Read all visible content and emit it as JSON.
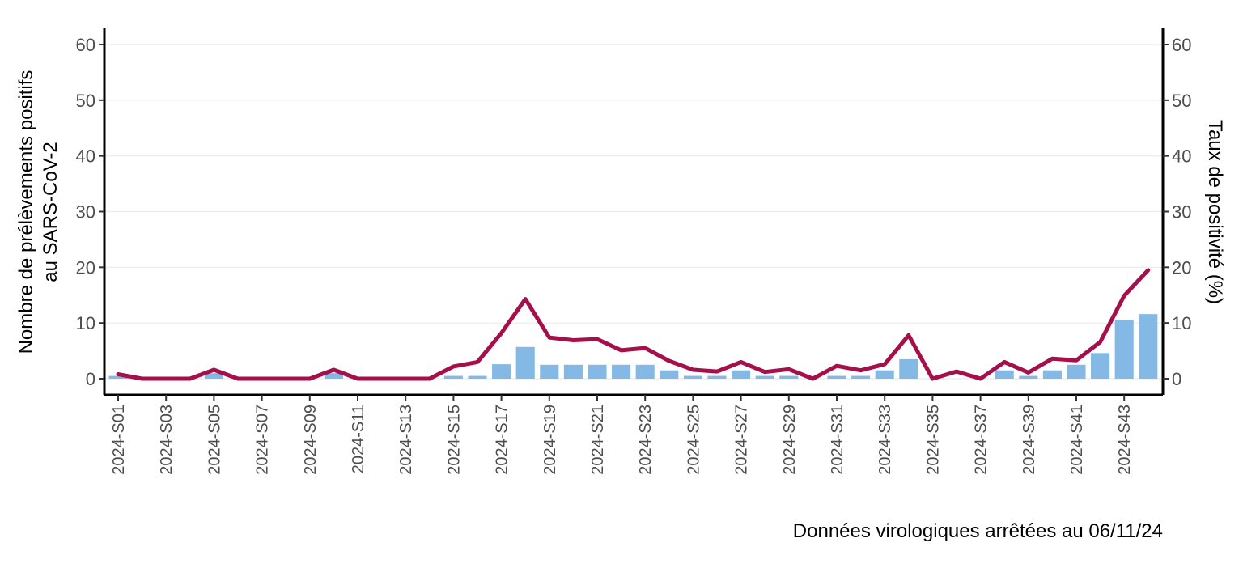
{
  "chart_data": {
    "type": "bar",
    "x": [
      "2024-S01",
      "2024-S02",
      "2024-S03",
      "2024-S04",
      "2024-S05",
      "2024-S06",
      "2024-S07",
      "2024-S08",
      "2024-S09",
      "2024-S10",
      "2024-S11",
      "2024-S12",
      "2024-S13",
      "2024-S14",
      "2024-S15",
      "2024-S16",
      "2024-S17",
      "2024-S18",
      "2024-S19",
      "2024-S20",
      "2024-S21",
      "2024-S22",
      "2024-S23",
      "2024-S24",
      "2024-S25",
      "2024-S26",
      "2024-S27",
      "2024-S28",
      "2024-S29",
      "2024-S30",
      "2024-S31",
      "2024-S32",
      "2024-S33",
      "2024-S34",
      "2024-S35",
      "2024-S36",
      "2024-S37",
      "2024-S38",
      "2024-S39",
      "2024-S40",
      "2024-S41",
      "2024-S42",
      "2024-S43",
      "2024-S44"
    ],
    "x_tick_labels": [
      "2024-S01",
      "2024-S03",
      "2024-S05",
      "2024-S07",
      "2024-S09",
      "2024-S11",
      "2024-S13",
      "2024-S15",
      "2024-S17",
      "2024-S19",
      "2024-S21",
      "2024-S23",
      "2024-S25",
      "2024-S27",
      "2024-S29",
      "2024-S31",
      "2024-S33",
      "2024-S35",
      "2024-S37",
      "2024-S39",
      "2024-S41",
      "2024-S43"
    ],
    "series": [
      {
        "type": "bar",
        "axis": "left",
        "color": "#85b9e5",
        "values": [
          0.5,
          0,
          0,
          0,
          1,
          0,
          0,
          0,
          0,
          1,
          0,
          0,
          0,
          0,
          0.5,
          0.5,
          2.6,
          5.7,
          2.5,
          2.5,
          2.5,
          2.5,
          2.5,
          1.5,
          0.5,
          0.5,
          1.5,
          0.5,
          0.5,
          0,
          0.5,
          0.5,
          1.5,
          3.5,
          0,
          0,
          0,
          1.5,
          0.5,
          1.5,
          2.5,
          4.6,
          10.6,
          11.6
        ]
      },
      {
        "type": "line",
        "axis": "right",
        "color": "#a50f4a",
        "values": [
          0.8,
          0,
          0,
          0,
          1.6,
          0,
          0,
          0,
          0,
          1.6,
          0,
          0,
          0,
          0,
          2.2,
          3,
          8.2,
          14.3,
          7.4,
          6.9,
          7.1,
          5.1,
          5.5,
          3.2,
          1.6,
          1.3,
          3,
          1.2,
          1.7,
          0,
          2.3,
          1.5,
          2.6,
          7.8,
          0,
          1.3,
          0,
          3,
          1.1,
          3.6,
          3.3,
          6.6,
          14.9,
          19.5
        ]
      }
    ],
    "ylim": [
      0,
      60
    ],
    "y_ticks": [
      0,
      10,
      20,
      30,
      40,
      50,
      60
    ],
    "y2lim": [
      0,
      60
    ],
    "y2_ticks": [
      0,
      10,
      20,
      30,
      40,
      50,
      60
    ],
    "ylabel_line1": "Nombre de prélèvements positifs",
    "ylabel_line2": "au SARS-CoV-2",
    "y2label": "Taux de positivité (%)",
    "caption": "Données virologiques arrêtées au 06/11/24",
    "grid": true
  }
}
